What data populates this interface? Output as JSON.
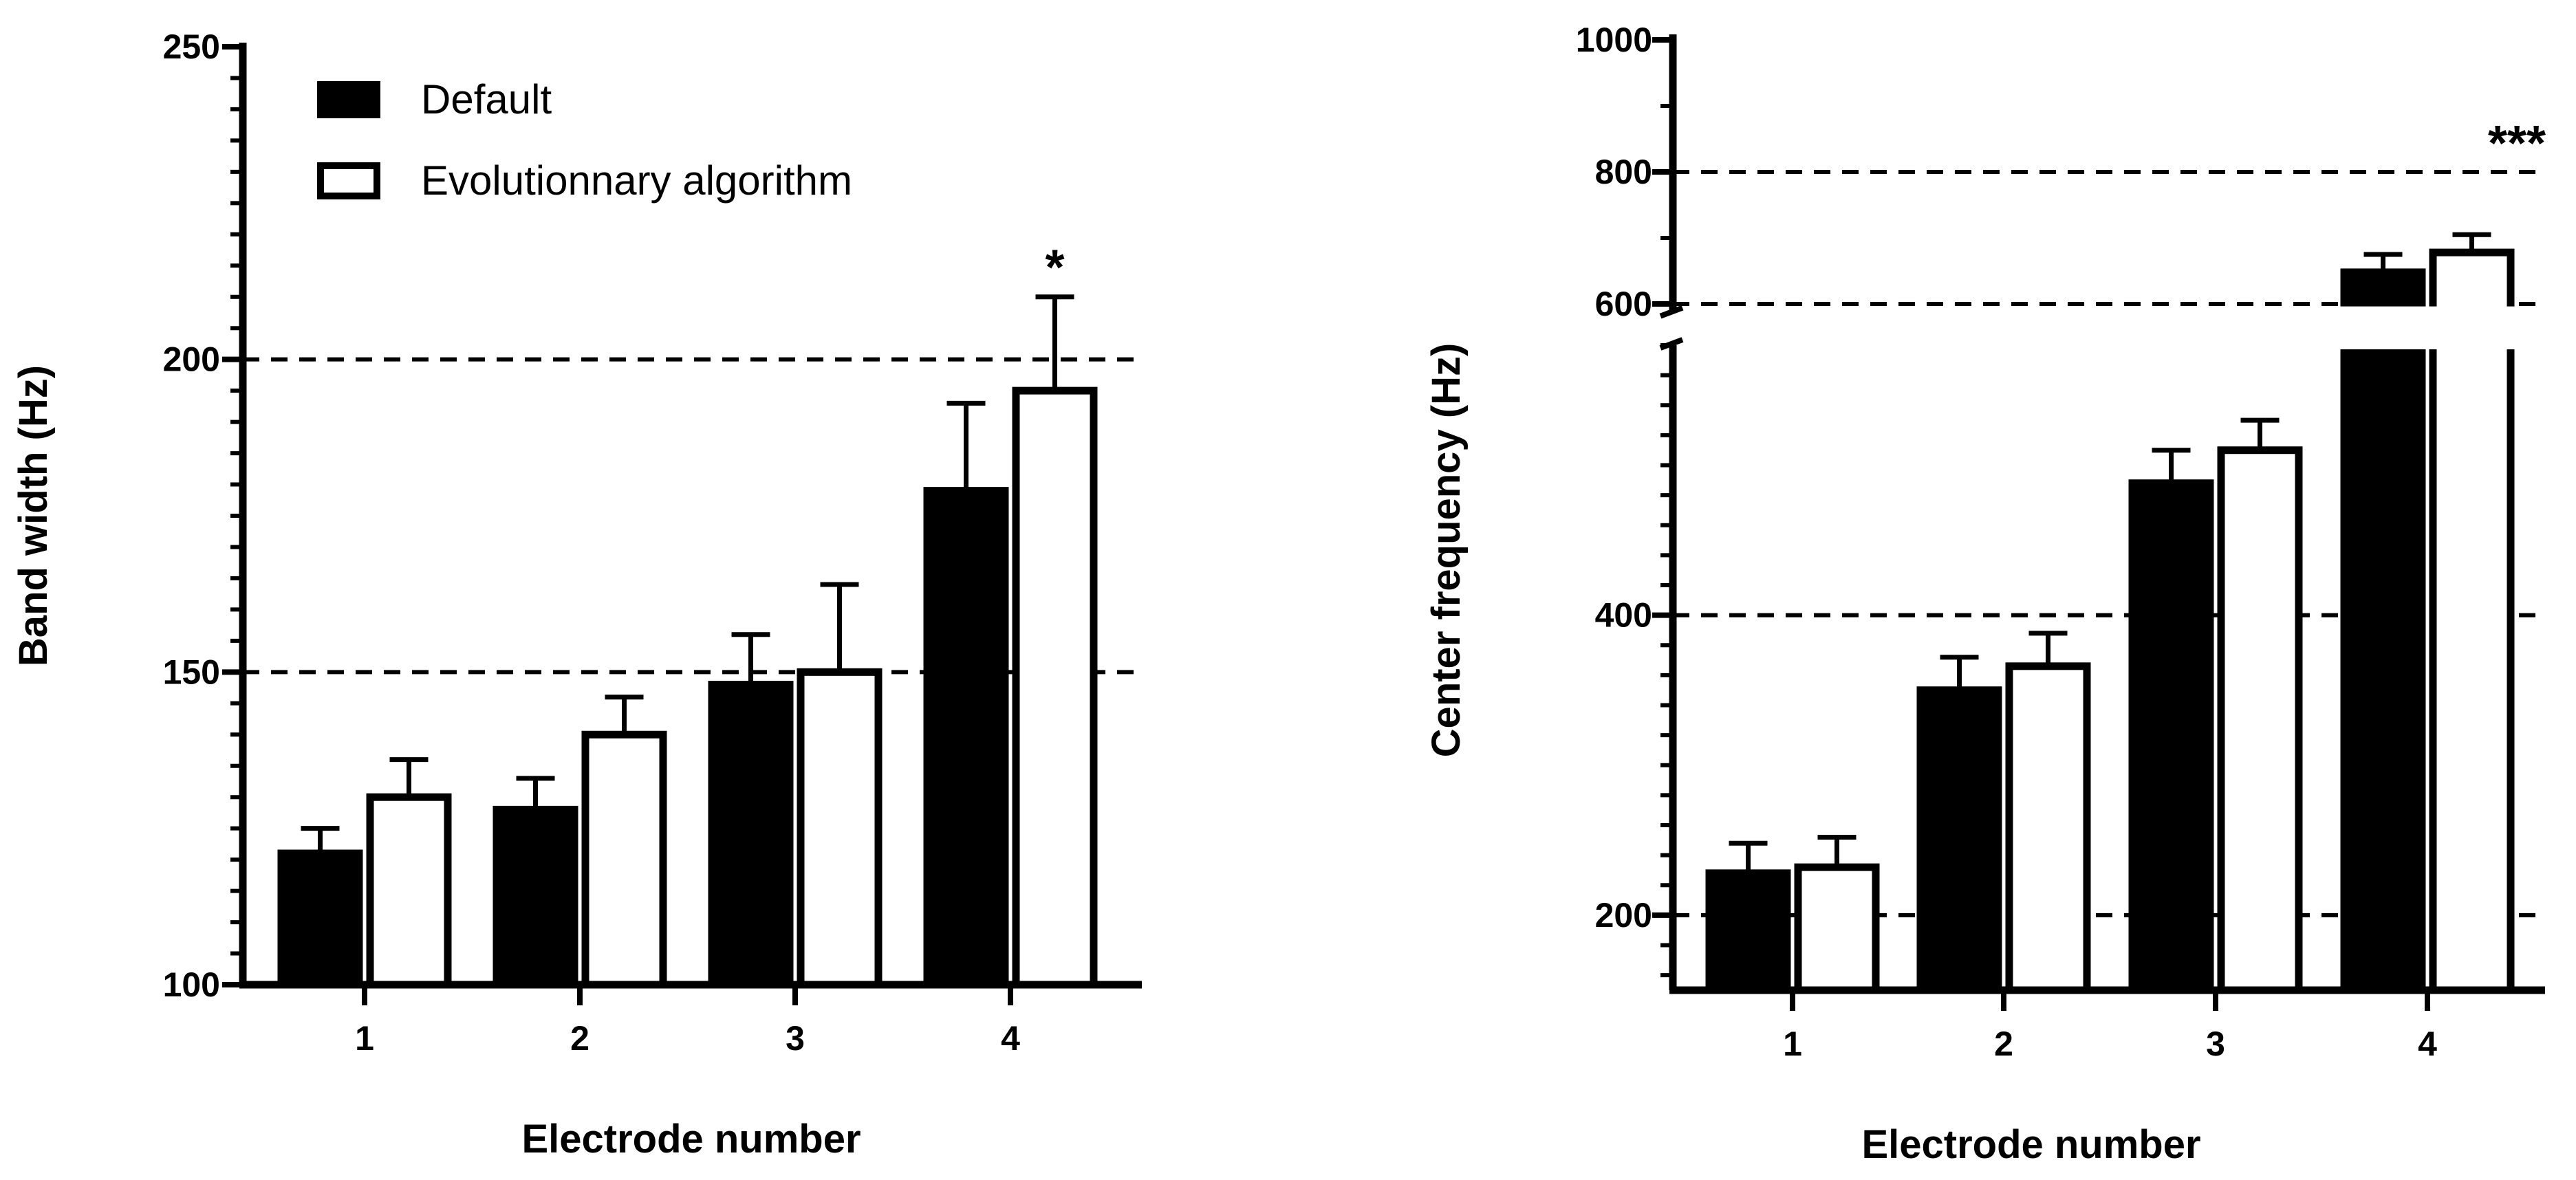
{
  "chart_data": [
    {
      "type": "bar",
      "title": "",
      "xlabel": "Electrode number",
      "ylabel": "Band width (Hz)",
      "categories": [
        "1",
        "2",
        "3",
        "4"
      ],
      "ylim": [
        100,
        250
      ],
      "yticks": [
        "100",
        "150",
        "200",
        "250"
      ],
      "reference_lines": [
        150,
        200
      ],
      "legend": {
        "placement": "top-left"
      },
      "series": [
        {
          "name": "Default",
          "fill": "#000000",
          "values": [
            121,
            128,
            148,
            179
          ],
          "errors": [
            4,
            5,
            8,
            14
          ]
        },
        {
          "name": "Evolutionnary algorithm",
          "fill": "#ffffff",
          "values": [
            130,
            140,
            150,
            195
          ],
          "errors": [
            6,
            6,
            14,
            15
          ]
        }
      ],
      "annotations": [
        {
          "category": "4",
          "text": "*"
        }
      ]
    },
    {
      "type": "bar",
      "title": "",
      "xlabel": "Electrode number",
      "ylabel": "Center frequency (Hz)",
      "categories": [
        "1",
        "2",
        "3",
        "4"
      ],
      "ylim": [
        150,
        1000
      ],
      "axis_break": [
        580,
        590
      ],
      "yticks": [
        "200",
        "400",
        "600",
        "800",
        "1000"
      ],
      "reference_lines": [
        200,
        400,
        600,
        800
      ],
      "series": [
        {
          "name": "Default",
          "fill": "#000000",
          "values": [
            228,
            350,
            488,
            648
          ],
          "errors": [
            20,
            22,
            22,
            27
          ]
        },
        {
          "name": "Evolutionnary algorithm",
          "fill": "#ffffff",
          "values": [
            232,
            366,
            510,
            678
          ],
          "errors": [
            20,
            22,
            20,
            27
          ]
        }
      ],
      "annotations": [
        {
          "category": "4",
          "text": "***"
        }
      ]
    }
  ]
}
